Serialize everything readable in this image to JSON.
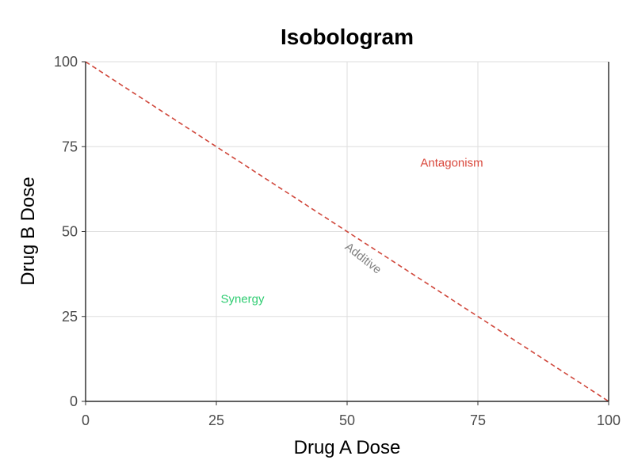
{
  "chart_data": {
    "type": "line",
    "title": "Isobologram",
    "xlabel": "Drug A Dose",
    "ylabel": "Drug B Dose",
    "xlim": [
      0,
      100
    ],
    "ylim": [
      0,
      100
    ],
    "x_ticks": [
      0,
      25,
      50,
      75,
      100
    ],
    "y_ticks": [
      0,
      25,
      50,
      75,
      100
    ],
    "grid": true,
    "series": [
      {
        "x": [
          0,
          100
        ],
        "y": [
          100,
          0
        ],
        "style": "dashed",
        "color": "#d0473b"
      }
    ],
    "annotations": [
      {
        "text": "Antagonism",
        "x": 70,
        "y": 70,
        "color": "#d9473b"
      },
      {
        "text": "Synergy",
        "x": 30,
        "y": 30,
        "color": "#2ecc71"
      },
      {
        "text": "Additive",
        "x": 53,
        "y": 42,
        "color": "#808080",
        "rotate_deg": 38
      }
    ]
  }
}
